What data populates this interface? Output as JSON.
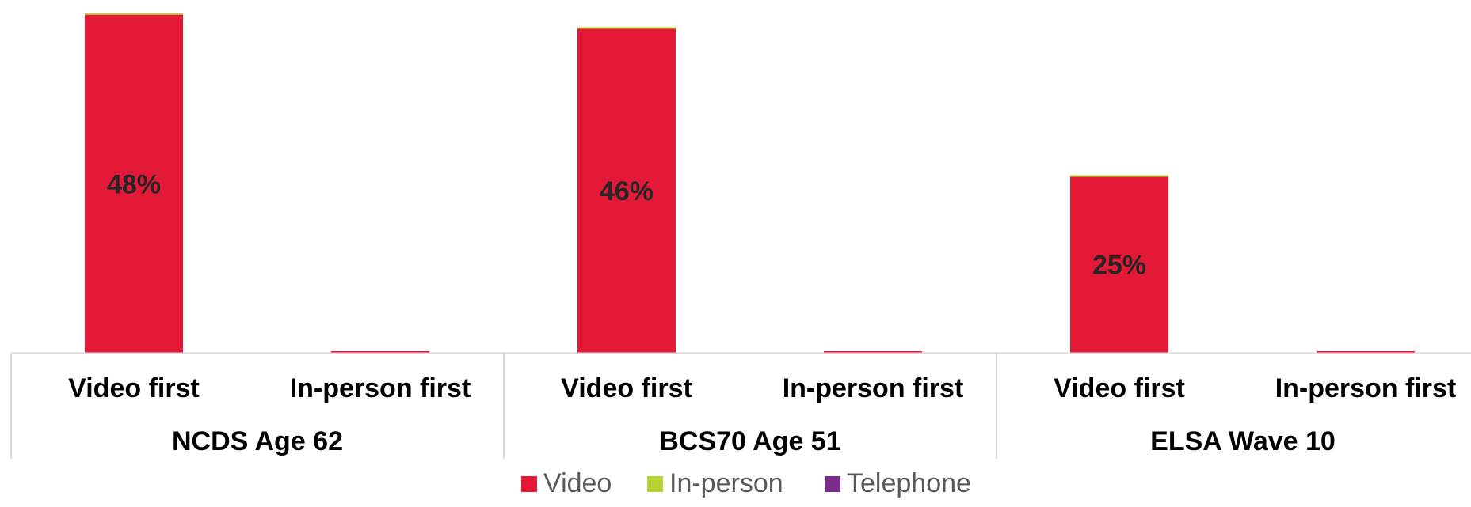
{
  "chart_data": {
    "type": "bar",
    "stacked": true,
    "groups": [
      {
        "label": "NCDS Age 62",
        "categories": [
          "Video first",
          "In-person first"
        ]
      },
      {
        "label": "BCS70 Age 51",
        "categories": [
          "Video first",
          "In-person first"
        ]
      },
      {
        "label": "ELSA Wave 10",
        "categories": [
          "Video first",
          "In-person first"
        ]
      }
    ],
    "series": [
      {
        "name": "Video",
        "color": "#E31937",
        "values": [
          48,
          0.1,
          46,
          0.2,
          25,
          0.2
        ],
        "labels": [
          "48%",
          "",
          "46%",
          "",
          "25%",
          ""
        ]
      },
      {
        "name": "In-person",
        "color": "#B5D334",
        "values": [
          0.1,
          0,
          0.1,
          0,
          0.2,
          0
        ]
      },
      {
        "name": "Telephone",
        "color": "#7B2C8E",
        "values": [
          0,
          0,
          0,
          0,
          0,
          0
        ]
      }
    ],
    "ylim": [
      0,
      48.3
    ],
    "grid": false,
    "legend_position": "bottom"
  }
}
